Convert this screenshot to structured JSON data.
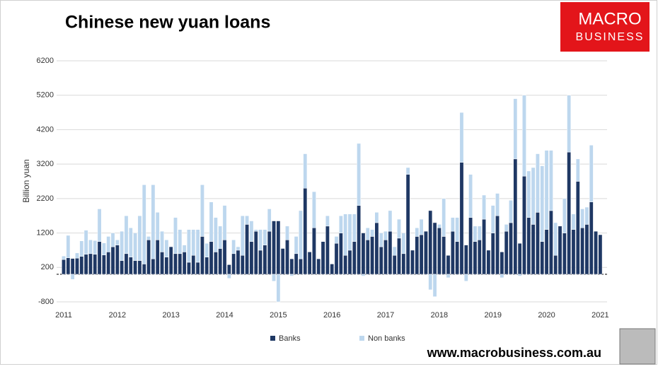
{
  "chart_data": {
    "type": "bar",
    "stacked": true,
    "title": "Chinese new yuan loans",
    "y_label": "Billion yuan",
    "logo": [
      "MACRO",
      "BUSINESS"
    ],
    "footer": "www.macrobusiness.com.au",
    "ylim": [
      -800,
      6200
    ],
    "yticks": [
      -800,
      200,
      1200,
      2200,
      3200,
      4200,
      5200,
      6200
    ],
    "grid": true,
    "legend": "bottom",
    "categories": [
      "2011",
      null,
      null,
      null,
      null,
      null,
      null,
      null,
      null,
      null,
      null,
      null,
      "2012",
      null,
      null,
      null,
      null,
      null,
      null,
      null,
      null,
      null,
      null,
      null,
      "2013",
      null,
      null,
      null,
      null,
      null,
      null,
      null,
      null,
      null,
      null,
      null,
      "2014",
      null,
      null,
      null,
      null,
      null,
      null,
      null,
      null,
      null,
      null,
      null,
      "2015",
      null,
      null,
      null,
      null,
      null,
      null,
      null,
      null,
      null,
      null,
      null,
      "2016",
      null,
      null,
      null,
      null,
      null,
      null,
      null,
      null,
      null,
      null,
      null,
      "2017",
      null,
      null,
      null,
      null,
      null,
      null,
      null,
      null,
      null,
      null,
      null,
      "2018",
      null,
      null,
      null,
      null,
      null,
      null,
      null,
      null,
      null,
      null,
      null,
      "2019",
      null,
      null,
      null,
      null,
      null,
      null,
      null,
      null,
      null,
      null,
      null,
      "2020",
      null,
      null,
      null,
      null,
      null,
      null,
      null,
      null,
      null,
      null,
      null,
      "2021"
    ],
    "series": [
      {
        "name": "Banks",
        "color": "#1f3864",
        "values": [
          430,
          480,
          460,
          470,
          520,
          580,
          600,
          580,
          950,
          560,
          650,
          800,
          850,
          400,
          600,
          500,
          400,
          400,
          300,
          1000,
          450,
          1000,
          650,
          500,
          800,
          600,
          600,
          650,
          350,
          550,
          350,
          1100,
          500,
          950,
          650,
          750,
          1000,
          280,
          600,
          700,
          550,
          1450,
          950,
          1250,
          700,
          850,
          1250,
          1550,
          1550,
          750,
          1000,
          450,
          600,
          450,
          2500,
          650,
          1350,
          450,
          950,
          1400,
          300,
          900,
          1200,
          550,
          700,
          950,
          2000,
          1200,
          1000,
          1100,
          1500,
          800,
          1000,
          1250,
          550,
          1050,
          600,
          2900,
          700,
          1100,
          1150,
          1250,
          1850,
          1500,
          1350,
          1100,
          550,
          1250,
          950,
          3250,
          850,
          1650,
          950,
          1000,
          1600,
          700,
          1200,
          1700,
          650,
          1250,
          1500,
          3350,
          900,
          2850,
          1650,
          1450,
          1800,
          950,
          1300,
          1850,
          550,
          1400,
          1200,
          3550,
          1300,
          2700,
          1350,
          1450,
          2100,
          1250,
          1150
        ]
      },
      {
        "name": "Non banks",
        "color": "#bdd7ee",
        "values": [
          100,
          650,
          -150,
          150,
          450,
          700,
          400,
          400,
          950,
          350,
          450,
          400,
          150,
          850,
          1100,
          850,
          800,
          1300,
          2300,
          100,
          2150,
          800,
          600,
          500,
          0,
          1050,
          700,
          200,
          950,
          750,
          950,
          1500,
          400,
          1150,
          1000,
          650,
          1000,
          -120,
          400,
          100,
          1150,
          250,
          600,
          50,
          600,
          450,
          650,
          -200,
          -800,
          0,
          400,
          -50,
          500,
          1400,
          1000,
          0,
          1050,
          0,
          0,
          300,
          0,
          200,
          500,
          1200,
          1050,
          800,
          1800,
          -50,
          350,
          200,
          300,
          400,
          250,
          600,
          250,
          550,
          600,
          200,
          0,
          250,
          450,
          0,
          -450,
          -650,
          100,
          1100,
          -100,
          400,
          700,
          1450,
          -200,
          1250,
          450,
          400,
          700,
          0,
          800,
          650,
          -100,
          200,
          650,
          1750,
          -50,
          2350,
          1350,
          1650,
          1700,
          2200,
          2300,
          1750,
          950,
          0,
          1000,
          1650,
          450,
          650,
          550,
          500,
          1650,
          0,
          0
        ]
      }
    ]
  }
}
